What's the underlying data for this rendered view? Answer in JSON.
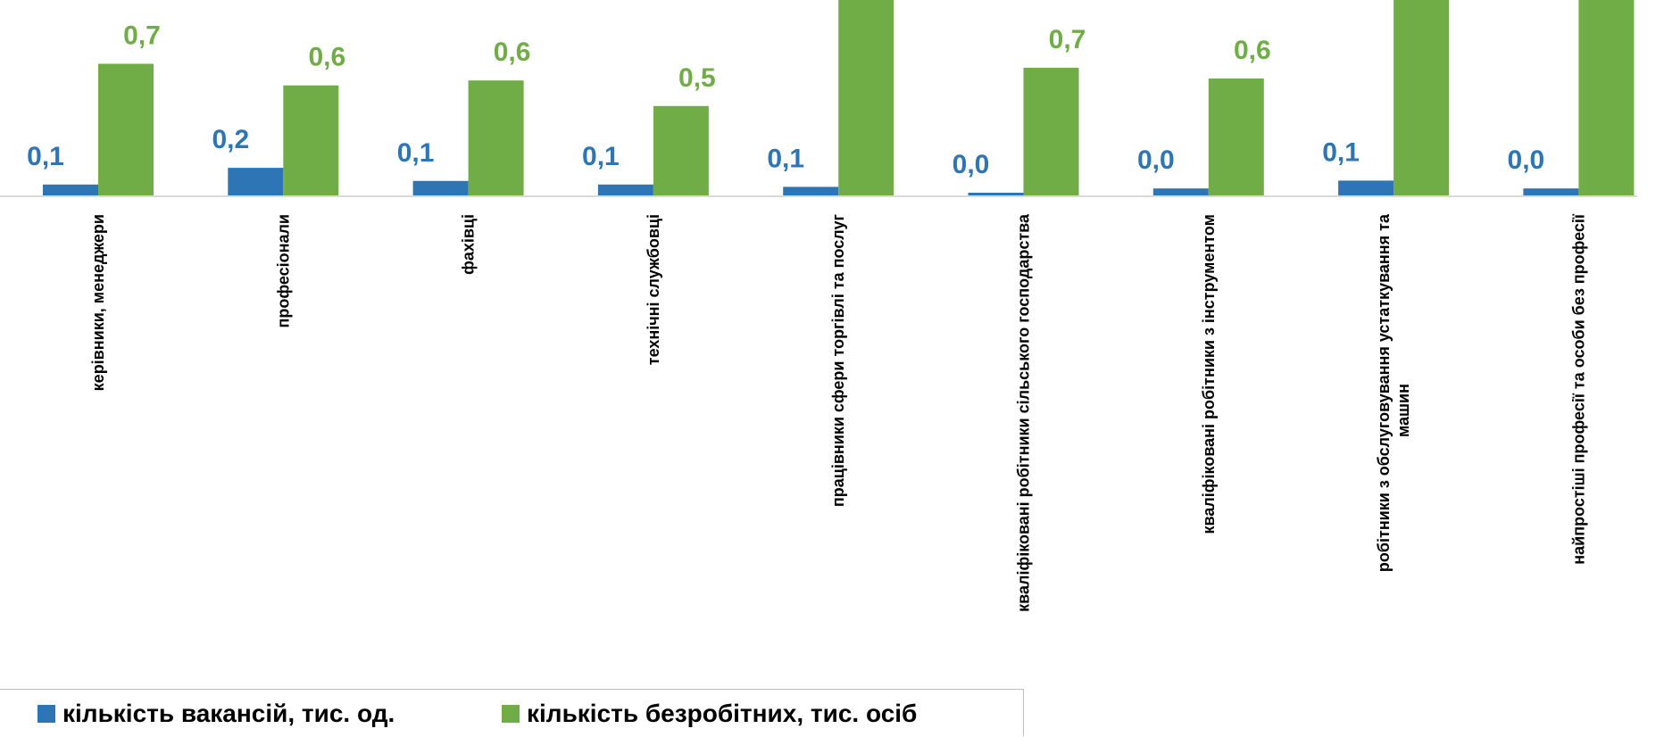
{
  "chart_data": {
    "type": "bar",
    "categories": [
      "керівники, менеджери",
      "професіонали",
      "фахівці",
      "технічні службовці",
      "працівники сфери торгівлі та послуг",
      "кваліфіковані робітники сільського господарства",
      "кваліфіковані робітники з інструментом",
      "робітники з обслуговування устаткування та машин",
      "найпростіші професії та особи без професії"
    ],
    "series": [
      {
        "name": "кількість вакансій, тис. од.",
        "color": "#2E75B6",
        "values": [
          0.1,
          0.2,
          0.1,
          0.1,
          0.1,
          0.0,
          0.0,
          0.1,
          0.0
        ],
        "labels": [
          "0,1",
          "0,2",
          "0,1",
          "0,1",
          "0,1",
          "0,0",
          "0,0",
          "0,1",
          "0,0"
        ],
        "bar_values": [
          0.06,
          0.145,
          0.078,
          0.06,
          0.048,
          0.018,
          0.04,
          0.08,
          0.04
        ]
      },
      {
        "name": "кількість безробітних, тис. осіб",
        "color": "#70AD47",
        "values": [
          0.7,
          0.6,
          0.6,
          0.5,
          1.1,
          0.7,
          0.6,
          1.1,
          1.1
        ],
        "labels": [
          "0,7",
          "0,6",
          "0,6",
          "0,5",
          "",
          "0,7",
          "0,6",
          "",
          ""
        ],
        "bar_values": [
          0.675,
          0.565,
          0.59,
          0.46,
          1.1,
          0.655,
          0.6,
          1.1,
          1.1
        ]
      }
    ],
    "legend_position": "bottom-left",
    "grid": false
  }
}
